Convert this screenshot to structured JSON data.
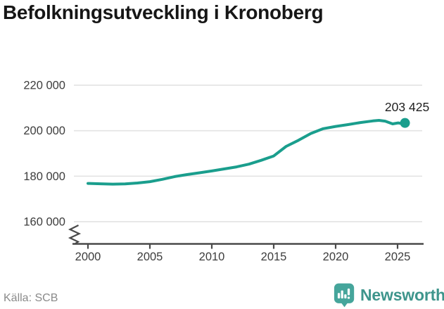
{
  "title": "Befolkningsutveckling i Kronoberg",
  "footer": {
    "source": "Källa: SCB",
    "brand": "Newsworthy"
  },
  "colors": {
    "line": "#1a9e8d",
    "grid": "#e3e3e3",
    "axis": "#4a4a4a",
    "tick_text": "#3d3d3d",
    "title_text": "#161616",
    "value_label_text": "#1f1f1f",
    "source_text": "#8a8a8a",
    "brand_icon": "#45a59b",
    "brand_text": "#3e958c"
  },
  "chart_data": {
    "type": "line",
    "title": "Befolkningsutveckling i Kronoberg",
    "xlabel": "",
    "ylabel": "",
    "grid": "horizontal",
    "legend": "none",
    "axis_break": true,
    "x_ticks": [
      2000,
      2005,
      2010,
      2015,
      2020,
      2025
    ],
    "y_ticks": [
      160000,
      180000,
      200000,
      220000
    ],
    "y_tick_labels": [
      "160 000",
      "180 000",
      "200 000",
      "220 000"
    ],
    "xlim": [
      1999.8,
      2027
    ],
    "ylim": [
      156000,
      224000
    ],
    "last_value_label": "203 425",
    "series": [
      {
        "name": "Kronoberg",
        "points": [
          [
            2000,
            176800
          ],
          [
            2001,
            176650
          ],
          [
            2002,
            176500
          ],
          [
            2003,
            176600
          ],
          [
            2004,
            177000
          ],
          [
            2005,
            177600
          ],
          [
            2006,
            178600
          ],
          [
            2007,
            179800
          ],
          [
            2008,
            180700
          ],
          [
            2009,
            181500
          ],
          [
            2010,
            182300
          ],
          [
            2011,
            183200
          ],
          [
            2012,
            184100
          ],
          [
            2013,
            185300
          ],
          [
            2014,
            187000
          ],
          [
            2015,
            188900
          ],
          [
            2016,
            193100
          ],
          [
            2017,
            195800
          ],
          [
            2018,
            198800
          ],
          [
            2019,
            200900
          ],
          [
            2020,
            201900
          ],
          [
            2021,
            202700
          ],
          [
            2022,
            203600
          ],
          [
            2023,
            204300
          ],
          [
            2023.5,
            204550
          ],
          [
            2024,
            204200
          ],
          [
            2024.6,
            203000
          ],
          [
            2025.05,
            203450
          ],
          [
            2025.3,
            203200
          ],
          [
            2025.6,
            203425
          ]
        ]
      }
    ]
  }
}
